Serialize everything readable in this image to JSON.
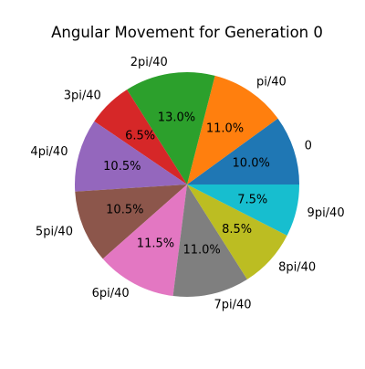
{
  "chart_data": {
    "type": "pie",
    "title": "Angular Movement for Generation 0",
    "start_angle_deg": 0,
    "direction": "counterclockwise",
    "slices": [
      {
        "label": "0",
        "value": 10.0,
        "pct_label": "10.0%",
        "color": "#1f77b4"
      },
      {
        "label": "pi/40",
        "value": 11.0,
        "pct_label": "11.0%",
        "color": "#ff7f0e"
      },
      {
        "label": "2pi/40",
        "value": 13.0,
        "pct_label": "13.0%",
        "color": "#2ca02c"
      },
      {
        "label": "3pi/40",
        "value": 6.5,
        "pct_label": "6.5%",
        "color": "#d62728"
      },
      {
        "label": "4pi/40",
        "value": 10.5,
        "pct_label": "10.5%",
        "color": "#9467bd"
      },
      {
        "label": "5pi/40",
        "value": 10.5,
        "pct_label": "10.5%",
        "color": "#8c564b"
      },
      {
        "label": "6pi/40",
        "value": 11.5,
        "pct_label": "11.5%",
        "color": "#e377c2"
      },
      {
        "label": "7pi/40",
        "value": 11.0,
        "pct_label": "11.0%",
        "color": "#7f7f7f"
      },
      {
        "label": "8pi/40",
        "value": 8.5,
        "pct_label": "8.5%",
        "color": "#bcbd22"
      },
      {
        "label": "9pi/40",
        "value": 7.5,
        "pct_label": "7.5%",
        "color": "#17becf"
      }
    ]
  }
}
